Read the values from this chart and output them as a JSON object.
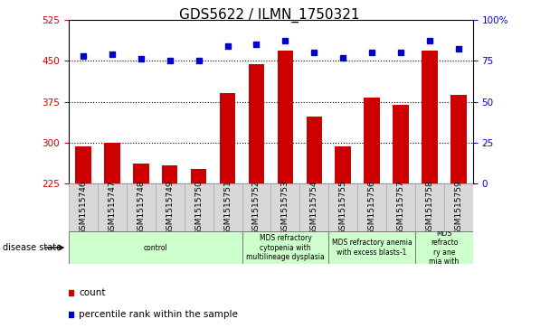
{
  "title": "GDS5622 / ILMN_1750321",
  "samples": [
    "GSM1515746",
    "GSM1515747",
    "GSM1515748",
    "GSM1515749",
    "GSM1515750",
    "GSM1515751",
    "GSM1515752",
    "GSM1515753",
    "GSM1515754",
    "GSM1515755",
    "GSM1515756",
    "GSM1515757",
    "GSM1515758",
    "GSM1515759"
  ],
  "counts": [
    293,
    300,
    262,
    258,
    252,
    390,
    443,
    468,
    348,
    293,
    383,
    370,
    468,
    388
  ],
  "percentiles": [
    78,
    79,
    76,
    75,
    75,
    84,
    85,
    87,
    80,
    77,
    80,
    80,
    87,
    82
  ],
  "ylim_left": [
    225,
    525
  ],
  "ylim_right": [
    0,
    100
  ],
  "yticks_left": [
    225,
    300,
    375,
    450,
    525
  ],
  "yticks_right": [
    0,
    25,
    50,
    75,
    100
  ],
  "hlines": [
    300,
    375,
    450
  ],
  "bar_color": "#cc0000",
  "dot_color": "#0000cc",
  "disease_groups": [
    {
      "label": "control",
      "start": 0,
      "end": 5,
      "color": "#ccffcc"
    },
    {
      "label": "MDS refractory\ncytopenia with\nmultilineage dysplasia",
      "start": 6,
      "end": 8,
      "color": "#ccffcc"
    },
    {
      "label": "MDS refractory anemia\nwith excess blasts-1",
      "start": 9,
      "end": 11,
      "color": "#ccffcc"
    },
    {
      "label": "MDS\nrefracto\nry ane\nmia with",
      "start": 12,
      "end": 13,
      "color": "#ccffcc"
    }
  ],
  "xlabel_disease": "disease state",
  "legend_count": "count",
  "legend_percentile": "percentile rank within the sample",
  "title_fontsize": 11,
  "tick_fontsize": 7.5,
  "bar_width": 0.55
}
